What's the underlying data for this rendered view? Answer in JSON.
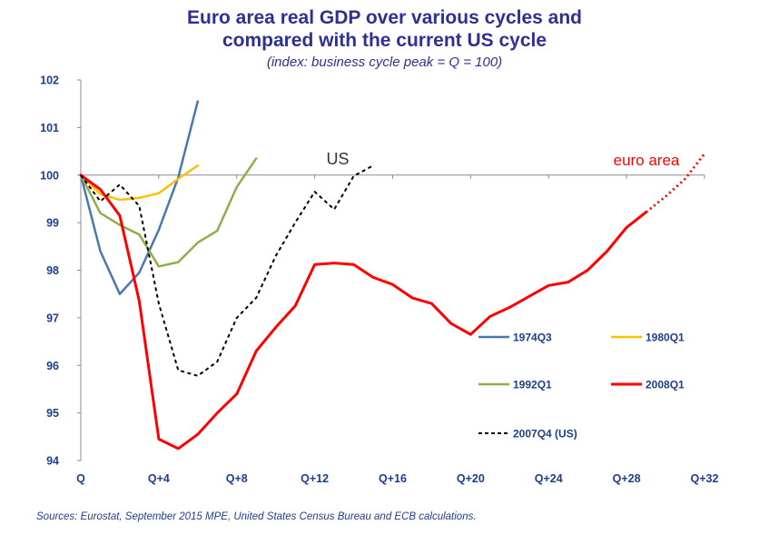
{
  "title_line1": "Euro area real GDP over various cycles and",
  "title_line2": "compared with the current US cycle",
  "subtitle": "(index: business cycle peak = Q = 100)",
  "source": "Sources: Eurostat, September 2015 MPE, United States Census Bureau and ECB calculations.",
  "annotations": {
    "us": "US",
    "euro_area": "euro area"
  },
  "colors": {
    "title": "#2e3192",
    "source": "#1f3e8a"
  },
  "chart_data": {
    "type": "line",
    "title": "Euro area real GDP over various cycles and compared with the current US cycle",
    "subtitle": "(index: business cycle peak = Q = 100)",
    "xlim": [
      0,
      32
    ],
    "ylim": [
      94,
      102
    ],
    "x_ticks": [
      {
        "value": 0,
        "label": "Q"
      },
      {
        "value": 4,
        "label": "Q+4"
      },
      {
        "value": 8,
        "label": "Q+8"
      },
      {
        "value": 12,
        "label": "Q+12"
      },
      {
        "value": 16,
        "label": "Q+16"
      },
      {
        "value": 20,
        "label": "Q+20"
      },
      {
        "value": 24,
        "label": "Q+24"
      },
      {
        "value": 28,
        "label": "Q+28"
      },
      {
        "value": 32,
        "label": "Q+32"
      }
    ],
    "y_ticks": [
      94,
      95,
      96,
      97,
      98,
      99,
      100,
      101,
      102
    ],
    "reference_line": 100,
    "grid": false,
    "series": [
      {
        "name": "1974Q3",
        "color": "#4a77b4",
        "dash": "solid",
        "x": [
          0,
          1,
          2,
          3,
          4,
          5,
          6
        ],
        "values": [
          100.0,
          98.4,
          97.5,
          97.95,
          98.85,
          99.95,
          101.55
        ]
      },
      {
        "name": "1980Q1",
        "color": "#ffc000",
        "dash": "solid",
        "x": [
          0,
          1,
          2,
          3,
          4,
          5,
          6
        ],
        "values": [
          100.0,
          99.6,
          99.48,
          99.52,
          99.62,
          99.92,
          100.2
        ]
      },
      {
        "name": "1992Q1",
        "color": "#8faf4a",
        "dash": "solid",
        "x": [
          0,
          1,
          2,
          3,
          4,
          5,
          6,
          7,
          8,
          9
        ],
        "values": [
          100.0,
          99.2,
          98.95,
          98.75,
          98.08,
          98.17,
          98.58,
          98.83,
          99.75,
          100.35
        ]
      },
      {
        "name": "2008Q1",
        "color": "#ff0000",
        "dash": "solid",
        "x": [
          0,
          1,
          2,
          3,
          4,
          5,
          6,
          7,
          8,
          9,
          10,
          11,
          12,
          13,
          14,
          15,
          16,
          17,
          18,
          19,
          20,
          21,
          22,
          23,
          24,
          25,
          26,
          27,
          28,
          29
        ],
        "values": [
          100.0,
          99.7,
          99.15,
          97.35,
          94.45,
          94.25,
          94.55,
          95.0,
          95.4,
          96.3,
          96.8,
          97.25,
          98.12,
          98.15,
          98.12,
          97.85,
          97.7,
          97.42,
          97.3,
          96.88,
          96.65,
          97.03,
          97.22,
          97.45,
          97.68,
          97.75,
          98.0,
          98.4,
          98.9,
          99.22
        ]
      },
      {
        "name": "2008Q1 (projection)",
        "legend": false,
        "color": "#ff0000",
        "dash": "dotted",
        "x": [
          29,
          30,
          31,
          32
        ],
        "values": [
          99.22,
          99.55,
          99.92,
          100.45
        ]
      },
      {
        "name": "2007Q4 (US)",
        "color": "#000000",
        "dash": "dashed",
        "x": [
          0,
          1,
          2,
          3,
          4,
          5,
          6,
          7,
          8,
          9,
          10,
          11,
          12,
          13,
          14,
          15
        ],
        "values": [
          100.0,
          99.45,
          99.8,
          99.35,
          97.3,
          95.9,
          95.78,
          96.08,
          97.0,
          97.42,
          98.3,
          99.0,
          99.65,
          99.28,
          99.98,
          100.2
        ]
      }
    ]
  }
}
